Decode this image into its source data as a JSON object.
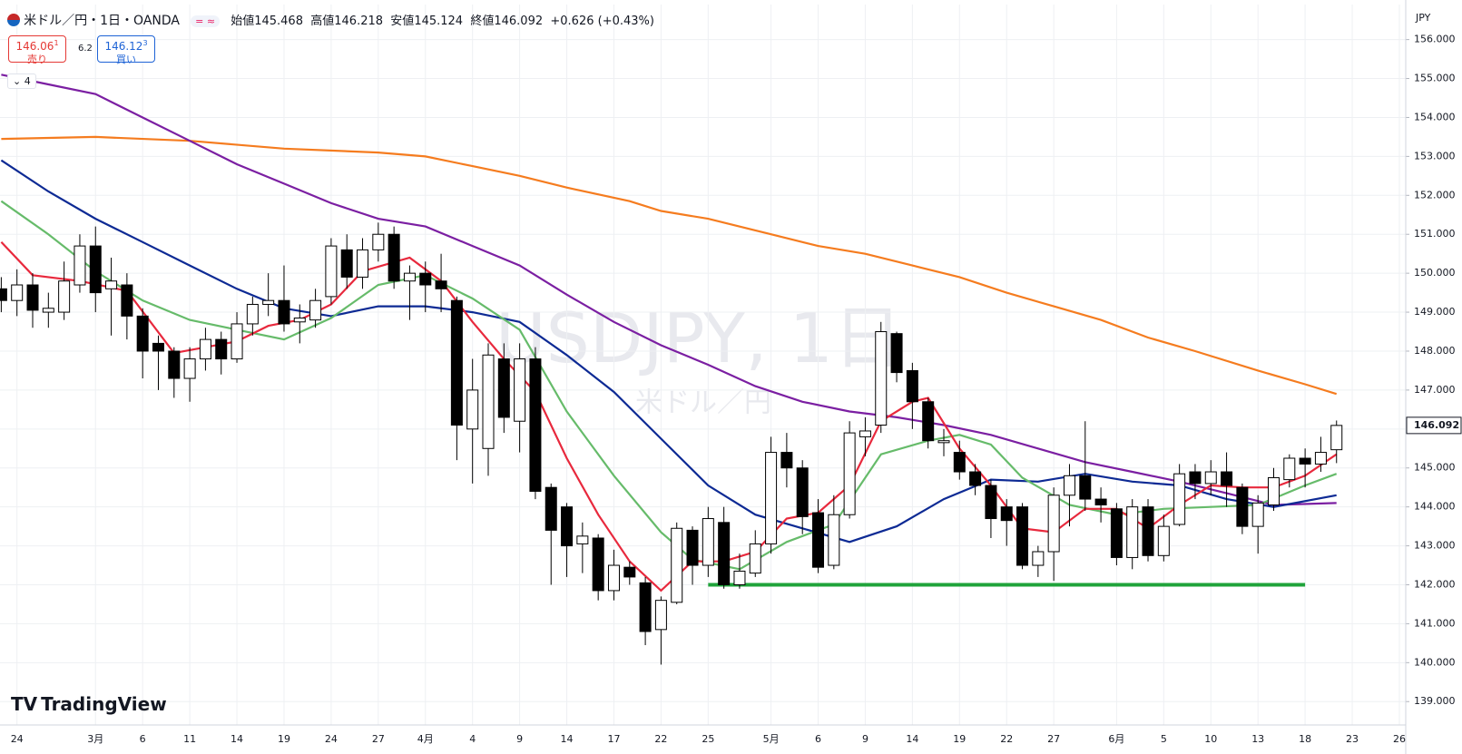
{
  "header": {
    "symbol": "米ドル／円・1日・OANDA",
    "open_label": "始値",
    "open": "145.468",
    "high_label": "高値",
    "high": "146.218",
    "low_label": "安値",
    "low": "145.124",
    "close_label": "終値",
    "close": "146.092",
    "change": "+0.626 (+0.43%)",
    "sell": {
      "price": "146.06",
      "pip": "1",
      "label": "売り"
    },
    "spread": "6.2",
    "buy": {
      "price": "146.12",
      "pip": "3",
      "label": "買い"
    },
    "indicators": "4",
    "currency": "JPY",
    "logo": "TradingView"
  },
  "chart_data": {
    "type": "candlestick",
    "watermark": "USDJPY, 1日",
    "watermark_sub": "米ドル／円",
    "categories": [
      null,
      "24",
      null,
      null,
      null,
      null,
      "3月",
      null,
      null,
      "6",
      null,
      null,
      "11",
      null,
      null,
      "14",
      null,
      null,
      "19",
      null,
      null,
      "24",
      null,
      null,
      "27",
      null,
      null,
      "4月",
      null,
      null,
      "4",
      null,
      null,
      "9",
      null,
      null,
      "14",
      null,
      null,
      "17",
      null,
      null,
      "22",
      null,
      null,
      "25",
      null,
      null,
      null,
      "5月",
      null,
      null,
      "6",
      null,
      null,
      "9",
      null,
      null,
      "14",
      null,
      null,
      "19",
      null,
      null,
      "22",
      null,
      null,
      "27",
      null,
      null,
      null,
      "6月",
      null,
      null,
      "5",
      null,
      null,
      "10",
      null,
      null,
      "13",
      null,
      null,
      "18",
      null,
      null,
      "23",
      null,
      null,
      "26"
    ],
    "open": [
      149.6,
      149.3,
      149.7,
      149.0,
      149.0,
      149.7,
      150.7,
      149.6,
      149.7,
      148.9,
      148.2,
      148.0,
      147.3,
      147.8,
      148.3,
      147.8,
      148.7,
      149.2,
      149.3,
      148.75,
      148.8,
      149.4,
      150.6,
      149.9,
      150.6,
      151.0,
      149.8,
      150.0,
      149.8,
      149.3,
      146.0,
      145.5,
      147.8,
      146.2,
      147.8,
      144.5,
      144.0,
      143.05,
      143.2,
      141.85,
      142.45,
      142.05,
      140.85,
      141.55,
      143.4,
      142.5,
      143.6,
      142.0,
      142.3,
      143.05,
      145.4,
      145.0,
      143.85,
      142.5,
      143.8,
      145.8,
      146.1,
      148.45,
      147.5,
      146.7,
      145.65,
      145.4,
      144.9,
      144.55,
      144.0,
      144.0,
      142.5,
      142.85,
      144.3,
      144.8,
      144.2,
      143.95,
      142.7,
      144.0,
      142.75,
      143.55,
      144.9,
      144.6,
      144.9,
      144.5,
      143.5,
      144.05,
      144.7,
      145.25,
      145.1,
      145.468,
      null,
      null,
      null,
      null
    ],
    "high": [
      149.9,
      150.1,
      150.0,
      149.5,
      150.3,
      151.0,
      151.2,
      150.4,
      150.0,
      149.1,
      148.4,
      148.1,
      148.1,
      148.6,
      148.5,
      149.0,
      149.4,
      150.0,
      150.2,
      149.2,
      149.6,
      150.9,
      151.0,
      150.9,
      151.3,
      151.2,
      150.2,
      150.3,
      150.5,
      149.4,
      147.8,
      148.2,
      148.2,
      148.2,
      148.1,
      144.6,
      144.1,
      143.6,
      143.3,
      142.9,
      142.6,
      142.2,
      141.7,
      143.6,
      143.5,
      144.0,
      144.0,
      142.8,
      143.4,
      145.8,
      145.9,
      145.2,
      144.2,
      144.3,
      146.2,
      146.3,
      148.75,
      148.5,
      147.7,
      146.8,
      146.0,
      145.7,
      145.1,
      144.7,
      144.2,
      144.1,
      143.0,
      144.5,
      145.1,
      146.2,
      144.5,
      144.1,
      144.2,
      144.2,
      143.8,
      145.1,
      145.1,
      145.2,
      145.4,
      144.6,
      144.3,
      145.0,
      145.35,
      145.5,
      145.8,
      146.218,
      null,
      null,
      null,
      null
    ],
    "low": [
      149.0,
      148.9,
      148.6,
      148.6,
      148.8,
      149.5,
      149.0,
      148.4,
      148.3,
      147.3,
      147.0,
      146.8,
      146.7,
      147.5,
      147.4,
      147.7,
      148.4,
      148.9,
      148.5,
      148.2,
      148.6,
      149.2,
      149.6,
      149.6,
      150.3,
      149.6,
      148.8,
      149.0,
      149.0,
      145.2,
      144.6,
      144.8,
      145.9,
      145.4,
      144.2,
      142.0,
      142.2,
      142.3,
      141.6,
      141.6,
      142.0,
      140.45,
      139.95,
      141.5,
      142.0,
      142.2,
      141.9,
      141.9,
      142.2,
      142.8,
      144.5,
      143.3,
      142.3,
      142.4,
      143.7,
      145.3,
      145.9,
      147.2,
      146.0,
      145.5,
      145.3,
      144.7,
      144.3,
      143.2,
      143.0,
      142.4,
      142.2,
      142.1,
      143.5,
      143.9,
      143.6,
      142.5,
      142.4,
      142.6,
      142.6,
      143.5,
      144.2,
      144.3,
      144.0,
      143.3,
      142.8,
      143.9,
      144.5,
      144.5,
      144.9,
      145.124,
      null,
      null,
      null,
      null
    ],
    "close": [
      149.3,
      149.7,
      149.05,
      149.1,
      149.8,
      150.7,
      149.5,
      149.8,
      148.9,
      148.0,
      148.0,
      147.3,
      147.8,
      148.3,
      147.8,
      148.7,
      149.2,
      149.3,
      148.7,
      148.85,
      149.3,
      150.7,
      149.9,
      150.6,
      151.0,
      149.8,
      150.0,
      149.7,
      149.6,
      146.1,
      147.0,
      147.9,
      146.3,
      147.8,
      144.4,
      143.4,
      143.0,
      143.25,
      141.85,
      142.5,
      142.2,
      140.8,
      141.6,
      143.45,
      142.5,
      143.7,
      142.0,
      142.35,
      143.05,
      145.4,
      145.0,
      143.75,
      142.45,
      143.8,
      145.9,
      145.95,
      148.5,
      147.45,
      146.7,
      145.7,
      145.7,
      144.9,
      144.55,
      143.7,
      143.65,
      142.5,
      142.85,
      144.3,
      144.8,
      144.2,
      144.05,
      142.7,
      144.0,
      142.75,
      143.5,
      144.85,
      144.6,
      144.9,
      144.55,
      143.5,
      144.1,
      144.75,
      145.25,
      145.1,
      145.4,
      146.092,
      null,
      null,
      null,
      null
    ],
    "up_color": "#ffffff",
    "down_color": "#000000",
    "wick_color": "#000000",
    "lines": [
      {
        "color": "#f57c1f",
        "x": [
          0,
          6,
          12,
          18,
          24,
          27,
          30,
          33,
          36,
          40,
          42,
          45,
          49,
          52,
          55,
          58,
          61,
          64,
          67,
          70,
          73,
          76,
          80,
          83,
          85
        ],
        "values": [
          153.45,
          153.5,
          153.4,
          153.2,
          153.1,
          153.0,
          152.75,
          152.5,
          152.2,
          151.85,
          151.6,
          151.4,
          151.0,
          150.7,
          150.5,
          150.2,
          149.9,
          149.5,
          149.15,
          148.8,
          148.35,
          148.0,
          147.5,
          147.15,
          146.9
        ]
      },
      {
        "color": "#7b1fa2",
        "x": [
          0,
          3,
          6,
          9,
          12,
          15,
          18,
          21,
          24,
          27,
          30,
          33,
          36,
          39,
          42,
          45,
          48,
          51,
          54,
          57,
          60,
          63,
          66,
          69,
          72,
          75,
          78,
          81,
          85
        ],
        "values": [
          155.1,
          154.85,
          154.6,
          154.0,
          153.4,
          152.8,
          152.3,
          151.8,
          151.4,
          151.2,
          150.7,
          150.2,
          149.45,
          148.75,
          148.15,
          147.65,
          147.1,
          146.7,
          146.45,
          146.3,
          146.1,
          145.85,
          145.5,
          145.15,
          144.9,
          144.65,
          144.35,
          144.05,
          144.1
        ]
      },
      {
        "color": "#0d2a94",
        "x": [
          0,
          3,
          6,
          9,
          12,
          15,
          18,
          21,
          24,
          27,
          30,
          33,
          36,
          39,
          42,
          45,
          48,
          51,
          54,
          57,
          60,
          63,
          66,
          69,
          72,
          75,
          78,
          81,
          85
        ],
        "values": [
          152.9,
          152.1,
          151.4,
          150.8,
          150.2,
          149.6,
          149.1,
          148.9,
          149.15,
          149.15,
          149.0,
          148.75,
          147.9,
          146.95,
          145.75,
          144.55,
          143.8,
          143.45,
          143.1,
          143.5,
          144.2,
          144.7,
          144.65,
          144.85,
          144.65,
          144.55,
          144.2,
          144.0,
          144.3
        ]
      },
      {
        "color": "#66bb6a",
        "x": [
          0,
          3,
          6,
          9,
          12,
          15,
          18,
          21,
          24,
          27,
          30,
          33,
          36,
          39,
          42,
          44,
          47,
          50,
          53,
          56,
          59,
          61,
          63,
          65,
          68,
          71,
          74,
          77,
          80,
          83,
          85
        ],
        "values": [
          151.85,
          151.0,
          150.05,
          149.3,
          148.8,
          148.55,
          148.3,
          148.85,
          149.7,
          149.95,
          149.35,
          148.55,
          146.45,
          144.8,
          143.35,
          142.65,
          142.4,
          143.1,
          143.55,
          145.35,
          145.7,
          145.85,
          145.6,
          144.75,
          144.05,
          143.8,
          143.95,
          144.0,
          144.05,
          144.55,
          144.85
        ]
      },
      {
        "color": "#e8293d",
        "x": [
          0,
          2,
          5,
          8,
          11,
          13,
          15,
          17,
          19,
          21,
          23,
          26,
          28,
          30,
          32,
          34,
          36,
          38,
          40,
          42,
          44,
          46,
          48,
          50,
          52,
          54,
          56,
          58,
          59,
          61,
          63,
          65,
          67,
          69,
          71,
          73,
          75,
          77,
          79,
          81,
          83,
          85
        ],
        "values": [
          150.8,
          149.95,
          149.8,
          149.55,
          147.95,
          148.1,
          148.25,
          148.65,
          148.8,
          149.2,
          150.05,
          150.4,
          149.8,
          148.75,
          147.8,
          146.95,
          145.25,
          143.8,
          142.6,
          141.85,
          142.6,
          142.6,
          142.85,
          143.7,
          143.85,
          144.55,
          146.2,
          146.7,
          146.8,
          145.5,
          144.55,
          143.45,
          143.35,
          143.95,
          143.95,
          143.45,
          144.05,
          144.55,
          144.5,
          144.5,
          144.8,
          145.35
        ]
      }
    ],
    "support": {
      "value": 142.0,
      "from": 45,
      "to": 83,
      "color": "#1fa33a"
    },
    "last_price": {
      "value": 146.092,
      "label": "146.092"
    },
    "ylim": [
      138.4,
      156.9
    ],
    "yticks": [
      {
        "value": 139,
        "label": "139.000"
      },
      {
        "value": 140,
        "label": "140.000"
      },
      {
        "value": 141,
        "label": "141.000"
      },
      {
        "value": 142,
        "label": "142.000"
      },
      {
        "value": 143,
        "label": "143.000"
      },
      {
        "value": 144,
        "label": "144.000"
      },
      {
        "value": 145,
        "label": "145.000"
      },
      {
        "value": 146,
        "label": "146.000"
      },
      {
        "value": 147,
        "label": "147.000"
      },
      {
        "value": 148,
        "label": "148.000"
      },
      {
        "value": 149,
        "label": "149.000"
      },
      {
        "value": 150,
        "label": "150.000"
      },
      {
        "value": 151,
        "label": "151.000"
      },
      {
        "value": 152,
        "label": "152.000"
      },
      {
        "value": 153,
        "label": "153.000"
      },
      {
        "value": 154,
        "label": "154.000"
      },
      {
        "value": 155,
        "label": "155.000"
      },
      {
        "value": 156,
        "label": "156.000"
      }
    ],
    "grid": true
  }
}
